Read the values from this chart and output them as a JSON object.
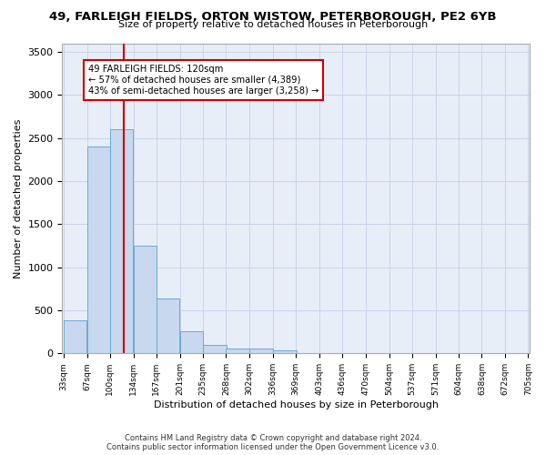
{
  "title": "49, FARLEIGH FIELDS, ORTON WISTOW, PETERBOROUGH, PE2 6YB",
  "subtitle": "Size of property relative to detached houses in Peterborough",
  "xlabel": "Distribution of detached houses by size in Peterborough",
  "ylabel": "Number of detached properties",
  "footer_line1": "Contains HM Land Registry data © Crown copyright and database right 2024.",
  "footer_line2": "Contains public sector information licensed under the Open Government Licence v3.0.",
  "bar_color": "#c8d8ee",
  "bar_edge_color": "#6aaad4",
  "grid_color": "#c8d4e8",
  "background_color": "#e8eef8",
  "annotation_text_line1": "49 FARLEIGH FIELDS: 120sqm",
  "annotation_text_line2": "← 57% of detached houses are smaller (4,389)",
  "annotation_text_line3": "43% of semi-detached houses are larger (3,258) →",
  "vline_color": "#cc0000",
  "vline_x": 120,
  "bins": [
    33,
    67,
    100,
    134,
    167,
    201,
    235,
    268,
    302,
    336,
    369,
    403,
    436,
    470,
    504,
    537,
    571,
    604,
    638,
    672,
    705
  ],
  "bin_heights": [
    380,
    2400,
    2600,
    1250,
    640,
    255,
    95,
    60,
    55,
    40,
    0,
    0,
    0,
    0,
    0,
    0,
    0,
    0,
    0,
    0
  ],
  "ylim": [
    0,
    3600
  ],
  "yticks": [
    0,
    500,
    1000,
    1500,
    2000,
    2500,
    3000,
    3500
  ]
}
